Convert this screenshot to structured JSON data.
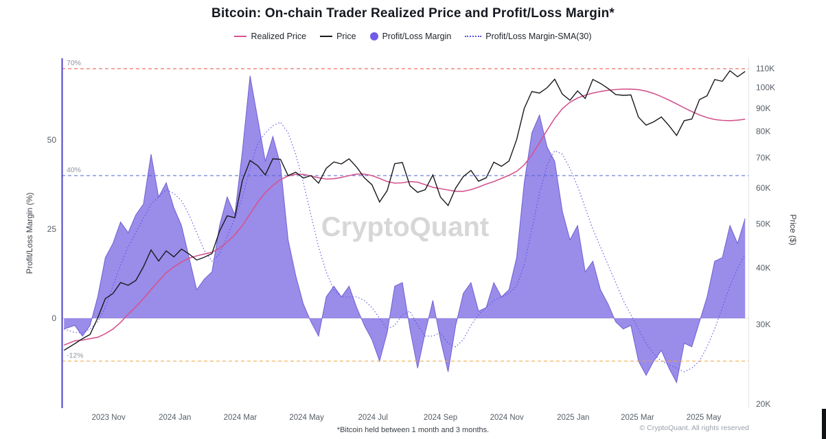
{
  "title": "Bitcoin: On-chain Trader Realized Price and Profit/Loss Margin*",
  "footnote": "*Bitcoin held between 1 month and 3 months.",
  "copyright": "© CryptoQuant. All rights reserved",
  "watermark": "CryptoQuant",
  "legend": [
    {
      "label": "Realized Price",
      "marker": "line",
      "color": "#d4548e"
    },
    {
      "label": "Price",
      "marker": "line",
      "color": "#17181c"
    },
    {
      "label": "Profit/Loss Margin",
      "marker": "dot",
      "color": "#6f5de7"
    },
    {
      "label": "Profit/Loss Margin-SMA(30)",
      "marker": "dotted",
      "color": "#5a50e6"
    }
  ],
  "chart_data": {
    "type": "mixed",
    "x_domain": [
      "2023-09-19",
      "2025-06-11"
    ],
    "x_ticks": [
      {
        "label": "2023 Nov",
        "date": "2023-11-01"
      },
      {
        "label": "2024 Jan",
        "date": "2024-01-01"
      },
      {
        "label": "2024 Mar",
        "date": "2024-03-01"
      },
      {
        "label": "2024 May",
        "date": "2024-05-01"
      },
      {
        "label": "2024 Jul",
        "date": "2024-07-01"
      },
      {
        "label": "2024 Sep",
        "date": "2024-09-01"
      },
      {
        "label": "2024 Nov",
        "date": "2024-11-01"
      },
      {
        "label": "2025 Jan",
        "date": "2025-01-01"
      },
      {
        "label": "2025 Mar",
        "date": "2025-03-01"
      },
      {
        "label": "2025 May",
        "date": "2025-05-01"
      }
    ],
    "axes": {
      "left": {
        "label": "Profit/Loss Margin (%)",
        "range": [
          -25.2,
          72.9
        ],
        "ticks": [
          50,
          25,
          0
        ],
        "tick_labels": [
          "50",
          "25",
          "0"
        ]
      },
      "right": {
        "label": "Price ($)",
        "scale": "log",
        "unit": "USD thousands",
        "range": [
          19.6,
          116
        ],
        "ticks": [
          110,
          100,
          90,
          80,
          70,
          60,
          50,
          40,
          30,
          20
        ],
        "tick_labels": [
          "110K",
          "100K",
          "90K",
          "80K",
          "70K",
          "60K",
          "50K",
          "40K",
          "30K",
          "20K"
        ]
      }
    },
    "reference_lines": [
      {
        "value": 70,
        "label": "70%",
        "color": "#e74c3c"
      },
      {
        "value": 40,
        "label": "40%",
        "color": "#4f63d2"
      },
      {
        "value": -12,
        "label": "-12%",
        "color": "#f0a23c"
      }
    ],
    "x": [
      "2023-09-21",
      "2023-10-01",
      "2023-10-08",
      "2023-10-15",
      "2023-10-22",
      "2023-10-29",
      "2023-11-05",
      "2023-11-12",
      "2023-11-19",
      "2023-11-26",
      "2023-12-03",
      "2023-12-10",
      "2023-12-17",
      "2023-12-24",
      "2023-12-31",
      "2024-01-07",
      "2024-01-14",
      "2024-01-21",
      "2024-01-28",
      "2024-02-04",
      "2024-02-11",
      "2024-02-18",
      "2024-02-25",
      "2024-03-03",
      "2024-03-10",
      "2024-03-17",
      "2024-03-24",
      "2024-03-31",
      "2024-04-07",
      "2024-04-14",
      "2024-04-21",
      "2024-04-28",
      "2024-05-05",
      "2024-05-12",
      "2024-05-19",
      "2024-05-26",
      "2024-06-02",
      "2024-06-09",
      "2024-06-16",
      "2024-06-23",
      "2024-06-30",
      "2024-07-07",
      "2024-07-14",
      "2024-07-21",
      "2024-07-28",
      "2024-08-04",
      "2024-08-11",
      "2024-08-18",
      "2024-08-25",
      "2024-09-01",
      "2024-09-08",
      "2024-09-15",
      "2024-09-22",
      "2024-09-29",
      "2024-10-06",
      "2024-10-13",
      "2024-10-20",
      "2024-10-27",
      "2024-11-03",
      "2024-11-10",
      "2024-11-17",
      "2024-11-24",
      "2024-12-01",
      "2024-12-08",
      "2024-12-15",
      "2024-12-22",
      "2024-12-29",
      "2025-01-05",
      "2025-01-12",
      "2025-01-19",
      "2025-01-26",
      "2025-02-02",
      "2025-02-09",
      "2025-02-16",
      "2025-02-23",
      "2025-03-02",
      "2025-03-09",
      "2025-03-16",
      "2025-03-23",
      "2025-03-30",
      "2025-04-06",
      "2025-04-13",
      "2025-04-20",
      "2025-04-27",
      "2025-05-04",
      "2025-05-11",
      "2025-05-18",
      "2025-05-25",
      "2025-06-01",
      "2025-06-08"
    ],
    "series": [
      {
        "name": "Realized Price",
        "type": "line",
        "axis": "right",
        "color": "#d4548e",
        "values": [
          27.0,
          27.6,
          27.7,
          27.9,
          28.1,
          28.6,
          29.3,
          30.3,
          31.6,
          32.8,
          34.2,
          35.8,
          37.4,
          39.0,
          40.2,
          41.2,
          42.0,
          42.5,
          42.9,
          43.3,
          44.2,
          45.6,
          47.3,
          49.6,
          52.6,
          55.8,
          58.6,
          60.8,
          62.6,
          63.8,
          64.3,
          64.3,
          63.8,
          63.2,
          62.8,
          62.9,
          63.3,
          63.9,
          64.4,
          64.4,
          63.9,
          63.0,
          62.0,
          61.5,
          61.6,
          62.0,
          61.8,
          61.0,
          60.2,
          59.8,
          59.4,
          59.0,
          59.0,
          59.5,
          60.3,
          61.2,
          62.0,
          63.0,
          64.0,
          65.3,
          67.5,
          71.0,
          75.5,
          80.5,
          85.5,
          89.8,
          92.8,
          94.8,
          96.2,
          97.2,
          98.0,
          98.6,
          99.0,
          99.2,
          99.2,
          98.9,
          98.2,
          97.0,
          95.5,
          93.8,
          92.0,
          90.2,
          88.5,
          87.0,
          85.8,
          85.0,
          84.6,
          84.5,
          84.7,
          85.1
        ]
      },
      {
        "name": "Price",
        "type": "line",
        "axis": "right",
        "color": "#17181c",
        "values": [
          26.3,
          27.2,
          27.9,
          28.5,
          31.0,
          34.2,
          35.1,
          37.1,
          36.6,
          37.5,
          40.2,
          43.8,
          41.4,
          43.6,
          42.3,
          44.0,
          42.9,
          41.6,
          42.2,
          43.0,
          48.2,
          52.1,
          51.6,
          62.4,
          69.0,
          67.2,
          64.1,
          69.6,
          69.4,
          63.9,
          65.0,
          63.1,
          63.9,
          61.5,
          66.3,
          68.5,
          67.8,
          69.6,
          66.7,
          63.2,
          61.0,
          55.9,
          59.2,
          67.9,
          68.3,
          60.7,
          58.7,
          59.5,
          64.1,
          57.3,
          54.9,
          60.0,
          63.6,
          65.6,
          62.1,
          63.2,
          68.4,
          67.0,
          68.8,
          76.7,
          89.9,
          98.0,
          97.2,
          99.9,
          104.3,
          96.7,
          93.7,
          98.3,
          94.6,
          104.2,
          102.1,
          99.5,
          96.5,
          96.1,
          96.3,
          86.0,
          82.6,
          84.0,
          86.1,
          82.4,
          78.4,
          84.5,
          85.2,
          94.0,
          95.9,
          104.1,
          103.2,
          108.9,
          105.6,
          108.5
        ]
      },
      {
        "name": "Profit/Loss Margin",
        "type": "area",
        "axis": "left",
        "color": "#7d6ce3",
        "values": [
          -3,
          -2,
          -5,
          -2,
          6,
          17,
          21,
          27,
          24,
          29,
          32,
          46,
          34,
          38,
          31,
          26,
          17,
          8,
          11,
          13,
          26,
          34,
          29,
          47,
          68,
          56,
          44,
          51,
          43,
          22,
          12,
          4,
          -1,
          -5,
          6,
          9,
          6,
          9,
          3,
          -2,
          -6,
          -12,
          -4,
          9,
          10,
          -3,
          -14,
          -4,
          5,
          -6,
          -15,
          -2,
          7,
          10,
          2,
          3,
          10,
          6,
          8,
          17,
          38,
          52,
          57,
          48,
          44,
          30,
          22,
          26,
          13,
          16,
          8,
          4,
          -1,
          -3,
          -2,
          -12,
          -16,
          -12,
          -9,
          -14,
          -18,
          -7,
          -8,
          -1,
          6,
          16,
          17,
          26,
          21,
          28
        ]
      },
      {
        "name": "Profit/Loss Margin-SMA(30)",
        "type": "line-dotted",
        "axis": "left",
        "color": "#5a50e6",
        "values": [
          -3,
          -4,
          -4,
          -3,
          -1,
          3,
          9,
          15,
          20,
          24,
          28,
          32,
          34,
          36,
          35,
          33,
          29,
          24,
          19,
          16,
          18,
          23,
          28,
          34,
          42,
          49,
          52,
          54,
          55,
          52,
          46,
          38,
          29,
          20,
          13,
          8,
          6,
          6,
          6,
          5,
          3,
          0,
          -3,
          -2,
          1,
          2,
          -2,
          -5,
          -5,
          -4,
          -7,
          -8,
          -6,
          -2,
          1,
          3,
          5,
          6,
          7,
          9,
          15,
          25,
          35,
          43,
          47,
          46,
          42,
          37,
          31,
          25,
          20,
          15,
          10,
          5,
          1,
          -3,
          -7,
          -10,
          -12,
          -13,
          -14,
          -15,
          -14,
          -12,
          -8,
          -3,
          3,
          9,
          14,
          18
        ]
      }
    ]
  }
}
